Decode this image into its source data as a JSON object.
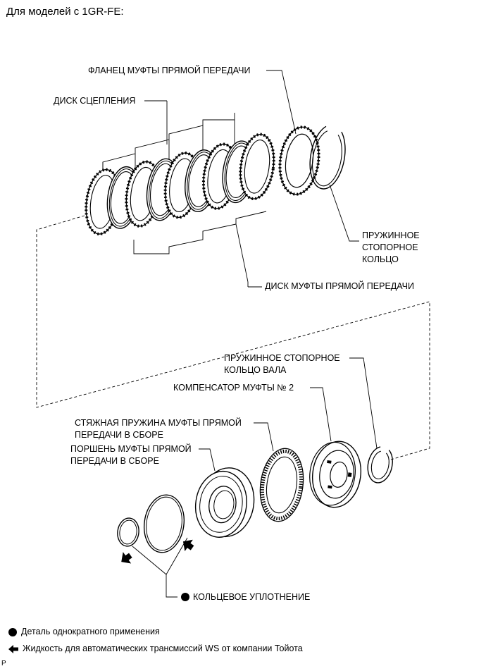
{
  "heading": "Для моделей с 1GR-FE:",
  "labels": {
    "direct_clutch_flange": "ФЛАНЕЦ МУФТЫ ПРЯМОЙ ПЕРЕДАЧИ",
    "clutch_disc": "ДИСК СЦЕПЛЕНИЯ",
    "spring_retaining_ring": "ПРУЖИННОЕ\nСТОПОРНОЕ\nКОЛЬЦО",
    "direct_clutch_plate": "ДИСК МУФТЫ ПРЯМОЙ ПЕРЕДАЧИ",
    "shaft_snap_ring": "ПРУЖИННОЕ СТОПОРНОЕ\nКОЛЬЦО ВАЛА",
    "clutch_compensator": "КОМПЕНСАТОР МУФТЫ № 2",
    "return_spring": "СТЯЖНАЯ ПРУЖИНА МУФТЫ ПРЯМОЙ\nПЕРЕДАЧИ В СБОРЕ",
    "piston": "ПОРШЕНЬ МУФТЫ ПРЯМОЙ\nПЕРЕДАЧИ В СБОРЕ",
    "o_ring": "КОЛЬЦЕВОЕ УПЛОТНЕНИЕ"
  },
  "legend": {
    "non_reusable": "Деталь однократного применения",
    "atf": "Жидкость для автоматических трансмиссий WS от компании Тойота"
  },
  "corner_mark": "P"
}
